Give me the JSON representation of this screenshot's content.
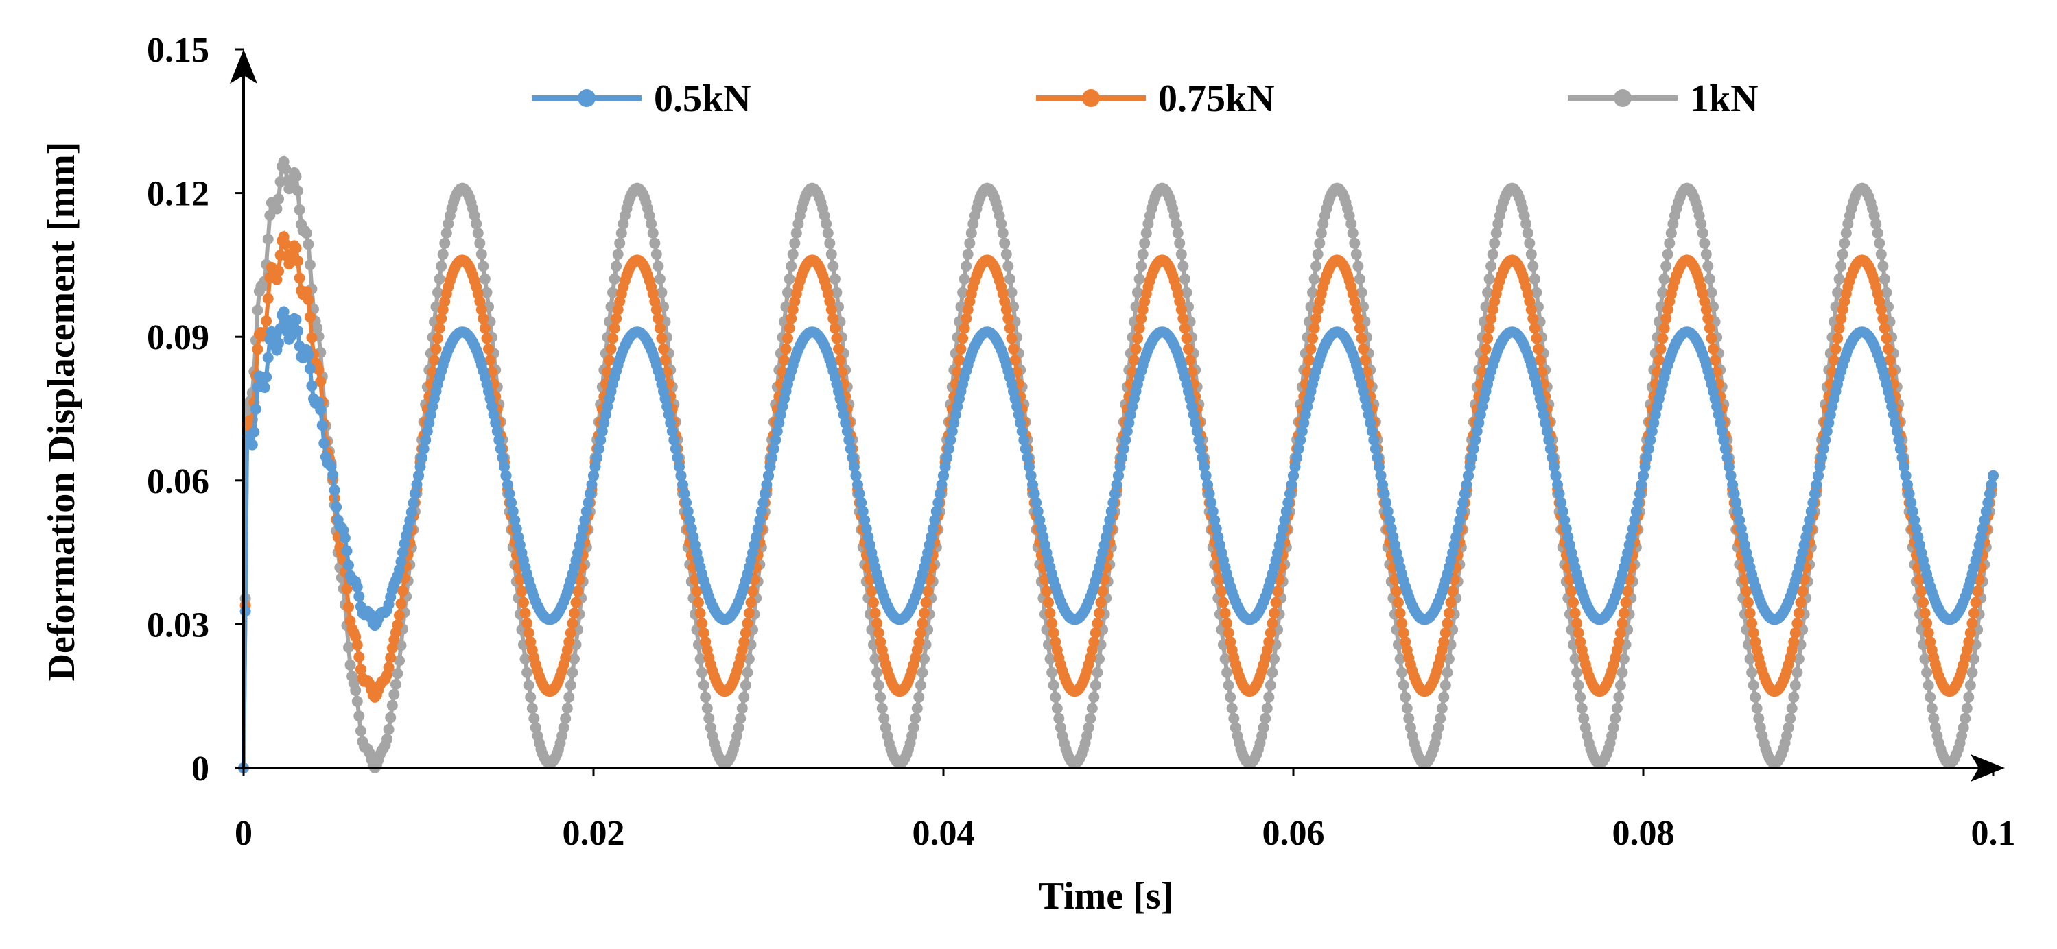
{
  "chart_data": {
    "type": "scatter",
    "title": "",
    "xlabel": "Time [s]",
    "ylabel": "Deformation Displacement [mm]",
    "xlim": [
      0,
      0.1
    ],
    "ylim": [
      0,
      0.15
    ],
    "x_ticks": [
      "0",
      "0.02",
      "0.04",
      "0.06",
      "0.08",
      "0.1"
    ],
    "y_ticks": [
      "0",
      "0.03",
      "0.06",
      "0.09",
      "0.12",
      "0.15"
    ],
    "legend_position": "top",
    "grid": false,
    "signal": {
      "period_s": 0.01,
      "peak_times_s": [
        0.0025,
        0.0125,
        0.0225,
        0.0325,
        0.0425,
        0.0525,
        0.0625,
        0.0725,
        0.0825,
        0.0925
      ],
      "trough_times_s": [
        0.0075,
        0.0175,
        0.0275,
        0.0375,
        0.0475,
        0.0575,
        0.0675,
        0.0775,
        0.0875,
        0.0975
      ],
      "start_value": 0.0,
      "end_value": 0.061
    },
    "series": [
      {
        "name": "0.5kN",
        "color": "#5B9BD5",
        "peak": 0.091,
        "trough": 0.031,
        "first_peak": 0.093,
        "first_trough": 0.03
      },
      {
        "name": "0.75kN",
        "color": "#ED7D31",
        "peak": 0.106,
        "trough": 0.016,
        "first_peak": 0.109,
        "first_trough": 0.015
      },
      {
        "name": "1kN",
        "color": "#A5A5A5",
        "peak": 0.121,
        "trough": 0.001,
        "first_peak": 0.125,
        "first_trough": 0.001
      }
    ]
  }
}
